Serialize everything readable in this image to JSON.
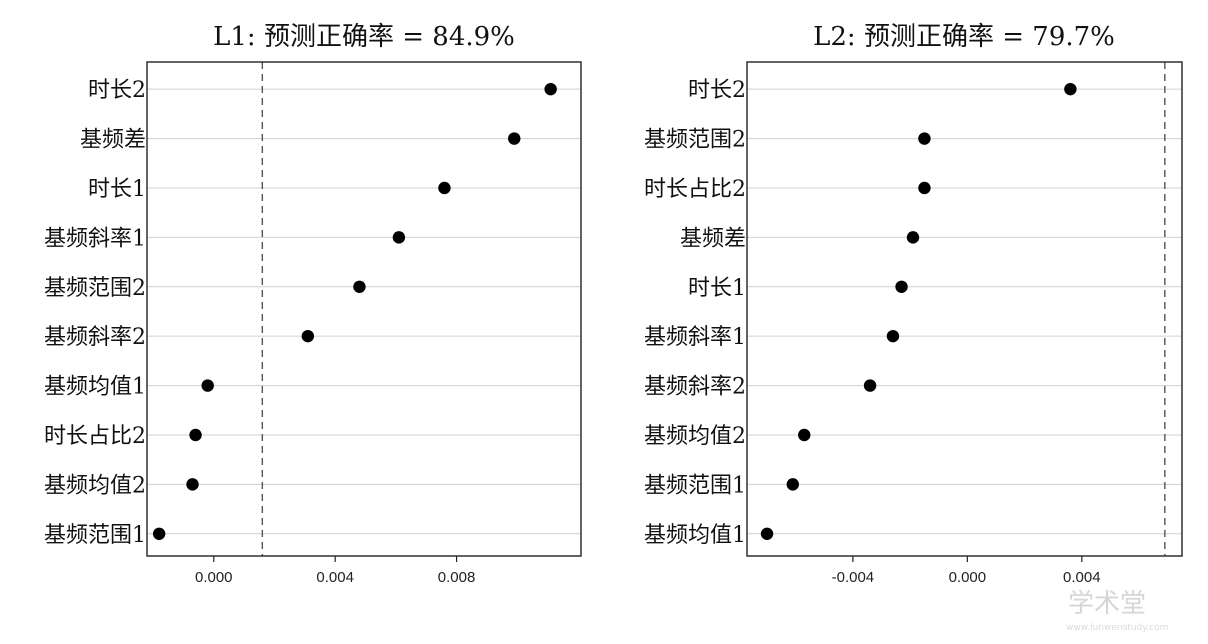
{
  "chart_data": [
    {
      "type": "scatter",
      "title": "L1: 预测正确率 = 84.9%",
      "categories": [
        "时长2",
        "基频差",
        "时长1",
        "基频斜率1",
        "基频范围2",
        "基频斜率2",
        "基频均值1",
        "时长占比2",
        "基频均值2",
        "基频范围1"
      ],
      "values": [
        0.0111,
        0.0099,
        0.0076,
        0.0061,
        0.0048,
        0.0031,
        -0.0002,
        -0.0006,
        -0.0007,
        -0.0018
      ],
      "reference_line": 0.0016,
      "xlim": [
        -0.0022,
        0.0121
      ],
      "xticks": [
        0.0,
        0.004,
        0.008
      ],
      "xtick_labels": [
        "0.000",
        "0.004",
        "0.008"
      ],
      "xlabel": "",
      "ylabel": "",
      "grid": "horizontal"
    },
    {
      "type": "scatter",
      "title": "L2: 预测正确率 = 79.7%",
      "categories": [
        "时长2",
        "基频范围2",
        "时长占比2",
        "基频差",
        "时长1",
        "基频斜率1",
        "基频斜率2",
        "基频均值2",
        "基频范围1",
        "基频均值1"
      ],
      "values": [
        0.0036,
        -0.0015,
        -0.0015,
        -0.0019,
        -0.0023,
        -0.0026,
        -0.0034,
        -0.0057,
        -0.0061,
        -0.007
      ],
      "reference_line": 0.0069,
      "xlim": [
        -0.0077,
        0.0075
      ],
      "xticks": [
        -0.004,
        0.0,
        0.004
      ],
      "xtick_labels": [
        "-0.004",
        "0.000",
        "0.004"
      ],
      "xlabel": "",
      "ylabel": "",
      "grid": "horizontal"
    }
  ],
  "watermark": {
    "main": "学术堂",
    "sub": "www.lunwenstudy.com"
  }
}
